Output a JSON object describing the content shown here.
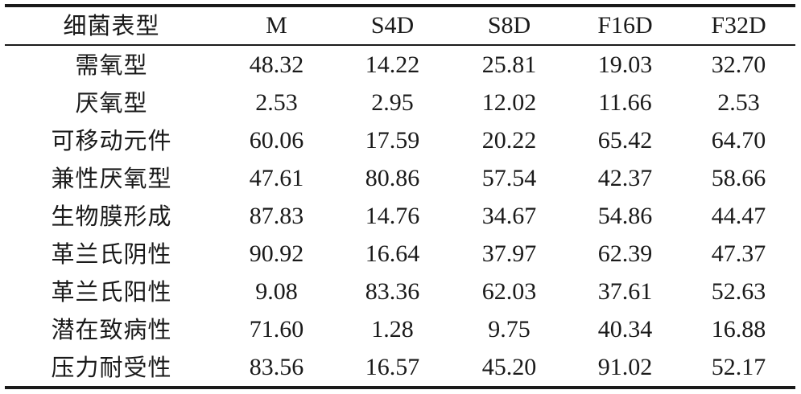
{
  "table": {
    "headers": [
      "细菌表型",
      "M",
      "S4D",
      "S8D",
      "F16D",
      "F32D"
    ],
    "rows": [
      [
        "需氧型",
        "48.32",
        "14.22",
        "25.81",
        "19.03",
        "32.70"
      ],
      [
        "厌氧型",
        "2.53",
        "2.95",
        "12.02",
        "11.66",
        "2.53"
      ],
      [
        "可移动元件",
        "60.06",
        "17.59",
        "20.22",
        "65.42",
        "64.70"
      ],
      [
        "兼性厌氧型",
        "47.61",
        "80.86",
        "57.54",
        "42.37",
        "58.66"
      ],
      [
        "生物膜形成",
        "87.83",
        "14.76",
        "34.67",
        "54.86",
        "44.47"
      ],
      [
        "革兰氏阴性",
        "90.92",
        "16.64",
        "37.97",
        "62.39",
        "47.37"
      ],
      [
        "革兰氏阳性",
        "9.08",
        "83.36",
        "62.03",
        "37.61",
        "52.63"
      ],
      [
        "潜在致病性",
        "71.60",
        "1.28",
        "9.75",
        "40.34",
        "16.88"
      ],
      [
        "压力耐受性",
        "83.56",
        "16.57",
        "45.20",
        "91.02",
        "52.17"
      ]
    ]
  }
}
